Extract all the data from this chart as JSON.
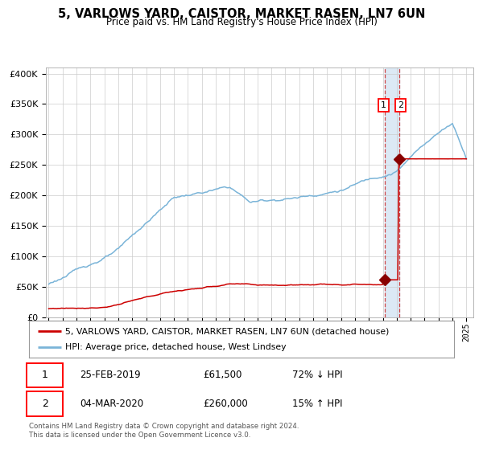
{
  "title1": "5, VARLOWS YARD, CAISTOR, MARKET RASEN, LN7 6UN",
  "title2": "Price paid vs. HM Land Registry's House Price Index (HPI)",
  "legend_line1": "5, VARLOWS YARD, CAISTOR, MARKET RASEN, LN7 6UN (detached house)",
  "legend_line2": "HPI: Average price, detached house, West Lindsey",
  "annotation1_date": "25-FEB-2019",
  "annotation1_price": "£61,500",
  "annotation1_hpi": "72% ↓ HPI",
  "annotation2_date": "04-MAR-2020",
  "annotation2_price": "£260,000",
  "annotation2_hpi": "15% ↑ HPI",
  "footer": "Contains HM Land Registry data © Crown copyright and database right 2024.\nThis data is licensed under the Open Government Licence v3.0.",
  "sale1_year": 2019.12,
  "sale1_price": 61500,
  "sale2_year": 2020.17,
  "sale2_price": 260000,
  "hpi_color": "#7ab4d8",
  "property_color": "#cc0000",
  "sale_marker_color": "#880000",
  "background_color": "#ffffff",
  "grid_color": "#cccccc",
  "highlight_color": "#dce9f5",
  "ylim": [
    0,
    410000
  ],
  "xlim_start": 1994.8,
  "xlim_end": 2025.5
}
